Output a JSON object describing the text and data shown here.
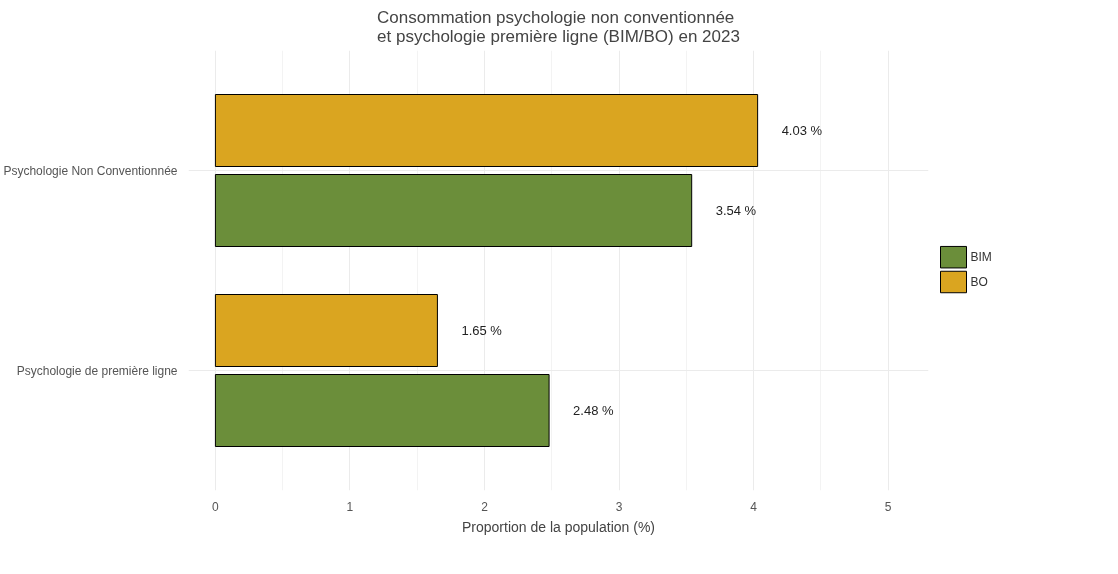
{
  "chart_data": {
    "type": "bar",
    "orientation": "horizontal",
    "title": "Consommation psychologie non conventionnée\net psychologie première ligne (BIM/BO) en 2023",
    "xlabel": "Proportion de la population (%)",
    "categories": [
      "Psychologie Non Conventionnée",
      "Psychologie de première ligne"
    ],
    "series": [
      {
        "name": "BIM",
        "color": "#6b8e3a",
        "values": [
          3.54,
          2.48
        ],
        "value_labels": [
          "3.54 %",
          "2.48 %"
        ]
      },
      {
        "name": "BO",
        "color": "#daa520",
        "values": [
          4.03,
          1.65
        ],
        "value_labels": [
          "4.03 %",
          "1.65 %"
        ]
      }
    ],
    "xlim": [
      -0.2,
      5.3
    ],
    "xticks": [
      0,
      1,
      2,
      3,
      4,
      5
    ],
    "grid": true,
    "legend": "right"
  }
}
